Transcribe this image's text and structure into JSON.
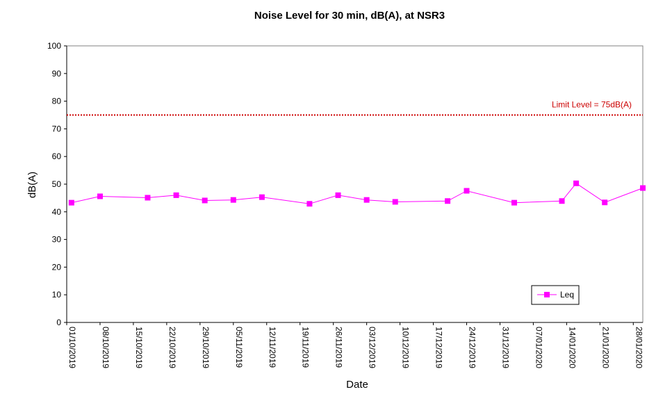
{
  "chart_data": {
    "type": "line",
    "title": "Noise Level for 30 min, dB(A), at NSR3",
    "xlabel": "Date",
    "ylabel": "dB(A)",
    "ylim": [
      0,
      100
    ],
    "yticks": [
      0,
      10,
      20,
      30,
      40,
      50,
      60,
      70,
      80,
      90,
      100
    ],
    "xlim": [
      "01/10/2019",
      "30/01/2020"
    ],
    "xticks": [
      "01/10/2019",
      "08/10/2019",
      "15/10/2019",
      "22/10/2019",
      "29/10/2019",
      "05/11/2019",
      "12/11/2019",
      "19/11/2019",
      "26/11/2019",
      "03/12/2019",
      "10/12/2019",
      "17/12/2019",
      "24/12/2019",
      "31/12/2019",
      "07/01/2020",
      "14/01/2020",
      "21/01/2020",
      "28/01/2020"
    ],
    "grid": false,
    "legend_position": "bottom-right",
    "series": [
      {
        "name": "Leq",
        "color": "#ff00ff",
        "marker": "square",
        "x": [
          "02/10/2019",
          "08/10/2019",
          "18/10/2019",
          "24/10/2019",
          "30/10/2019",
          "05/11/2019",
          "11/11/2019",
          "21/11/2019",
          "27/11/2019",
          "03/12/2019",
          "09/12/2019",
          "20/12/2019",
          "24/12/2019",
          "03/01/2020",
          "13/01/2020",
          "16/01/2020",
          "22/01/2020",
          "30/01/2020"
        ],
        "y": [
          43.3,
          45.6,
          45.1,
          46.0,
          44.1,
          44.3,
          45.3,
          42.9,
          46.0,
          44.3,
          43.6,
          43.9,
          47.6,
          43.3,
          43.9,
          50.3,
          43.4,
          48.6
        ]
      }
    ],
    "reference_line": {
      "label": "Limit Level  = 75dB(A)",
      "value": 75,
      "color": "#cc0000",
      "style": "dotted"
    }
  }
}
